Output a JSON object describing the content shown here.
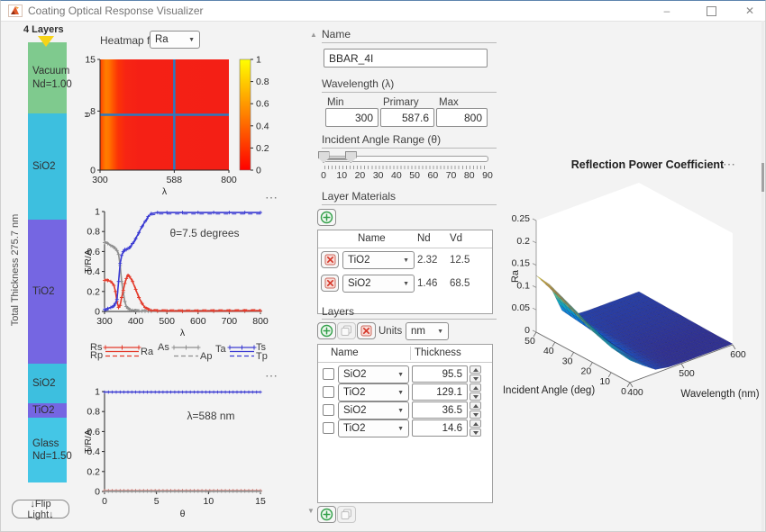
{
  "window": {
    "title": "Coating Optical Response Visualizer",
    "controls": {
      "minimize": "–",
      "close": "✕"
    }
  },
  "colors": {
    "red": "#e33a2a",
    "blue": "#3b3bd2",
    "gray": "#8f8f8f",
    "crosshair": "#2c7abf",
    "heat_low": "#ff0000",
    "heat_high": "#ffff00",
    "axis": "#262626"
  },
  "layer_panel": {
    "count_label": "4 Layers",
    "total_thickness_label": "Total Thickness 275.7 nm",
    "flip_button": "↓Flip Light↓",
    "layers": [
      {
        "lines": [
          "Vacuum",
          "Nd=1.00"
        ],
        "color": "#7fca8e",
        "h": 79
      },
      {
        "lines": [
          "SiO2"
        ],
        "color": "#3dbfdf",
        "h": 118
      },
      {
        "lines": [
          "TiO2"
        ],
        "color": "#7566e2",
        "h": 160
      },
      {
        "lines": [
          "SiO2"
        ],
        "color": "#3dbfdf",
        "h": 44
      },
      {
        "lines": [
          "TiO2"
        ],
        "color": "#7566e2",
        "h": 16
      },
      {
        "lines": [
          "Glass",
          "Nd=1.50"
        ],
        "color": "#44c6e6",
        "h": 72
      }
    ]
  },
  "heatmap": {
    "type": "heatmap",
    "selector_label": "Heatmap for :",
    "selector_value": "Ra",
    "xlabel": "λ",
    "ylabel": "θ",
    "xlim": [
      300,
      800
    ],
    "ylim": [
      0,
      15
    ],
    "xticks": [
      "300",
      "588",
      "800"
    ],
    "yticks": [
      "0",
      "8",
      "15"
    ],
    "crosshair": {
      "lambda": 588,
      "theta": 7.5
    },
    "band": [
      {
        "o": 0.0,
        "c": "#ff3800"
      },
      {
        "o": 0.02,
        "c": "#ff5f00"
      },
      {
        "o": 0.045,
        "c": "#ff7d00"
      },
      {
        "o": 0.07,
        "c": "#ff7400"
      },
      {
        "o": 0.1,
        "c": "#ff5500"
      },
      {
        "o": 0.14,
        "c": "#fb3307"
      },
      {
        "o": 0.2,
        "c": "#f72513"
      },
      {
        "o": 0.3,
        "c": "#f52015"
      },
      {
        "o": 1.0,
        "c": "#f41f15"
      }
    ],
    "colorbar_ticks": [
      "0",
      "0.2",
      "0.4",
      "0.6",
      "0.8",
      "1"
    ],
    "menu": "⋯"
  },
  "spectral_plot": {
    "type": "line",
    "annotation": "θ=7.5 degrees",
    "xlabel": "λ",
    "ylabel": "T/R/A",
    "xlim": [
      300,
      800
    ],
    "ylim": [
      0,
      1
    ],
    "xticks": [
      "300",
      "400",
      "500",
      "600",
      "700",
      "800"
    ],
    "yticks": [
      "0",
      "0.2",
      "0.4",
      "0.6",
      "0.8",
      "1"
    ],
    "x": [
      300,
      310,
      320,
      330,
      335,
      340,
      345,
      350,
      355,
      360,
      365,
      370,
      375,
      380,
      390,
      400,
      410,
      420,
      430,
      440,
      450,
      470,
      500,
      550,
      600,
      650,
      700,
      750,
      800
    ],
    "series": [
      {
        "name": "T",
        "color_key": "blue",
        "y": [
          0.02,
          0.03,
          0.04,
          0.06,
          0.08,
          0.12,
          0.3,
          0.48,
          0.56,
          0.6,
          0.62,
          0.62,
          0.63,
          0.64,
          0.68,
          0.73,
          0.79,
          0.85,
          0.9,
          0.95,
          0.98,
          0.99,
          0.99,
          0.99,
          0.99,
          0.99,
          0.99,
          0.99,
          0.99
        ]
      },
      {
        "name": "R",
        "color_key": "red",
        "y": [
          0.31,
          0.31,
          0.3,
          0.26,
          0.2,
          0.1,
          0.04,
          0.06,
          0.14,
          0.21,
          0.28,
          0.33,
          0.36,
          0.35,
          0.3,
          0.22,
          0.14,
          0.08,
          0.04,
          0.02,
          0.01,
          0.006,
          0.005,
          0.004,
          0.004,
          0.005,
          0.005,
          0.006,
          0.007
        ]
      },
      {
        "name": "A",
        "color_key": "gray",
        "y": [
          0.69,
          0.68,
          0.66,
          0.64,
          0.63,
          0.61,
          0.57,
          0.46,
          0.3,
          0.19,
          0.1,
          0.05,
          0.03,
          0.02,
          0.012,
          0.008,
          0.005,
          0.004,
          0.003,
          0.002,
          0.002,
          0.001,
          0.001,
          0.001,
          0.001,
          0.001,
          0.001,
          0.001,
          0.001
        ]
      }
    ],
    "legend": [
      "Rs",
      "Rp",
      "Ra",
      "As",
      "Ap",
      "Ta",
      "Ts",
      "Tp"
    ],
    "menu": "⋯"
  },
  "angular_plot": {
    "type": "line",
    "annotation": "λ=588 nm",
    "xlabel": "θ",
    "ylabel": "T/R/A",
    "xlim": [
      0,
      15
    ],
    "ylim": [
      0,
      1
    ],
    "xticks": [
      "0",
      "5",
      "10",
      "15"
    ],
    "yticks": [
      "0",
      "0.2",
      "0.4",
      "0.6",
      "0.8",
      "1"
    ],
    "series": [
      {
        "name": "T",
        "color_key": "blue",
        "value": 0.995
      },
      {
        "name": "R",
        "color_key": "red",
        "value": 0.007
      },
      {
        "name": "A",
        "color_key": "gray",
        "value": 0.003
      }
    ],
    "menu": "⋯"
  },
  "surface_plot": {
    "type": "surface",
    "title": "Reflection Power Coefficient",
    "xlabel": "Wavelength (nm)",
    "ylabel": "Incident Angle (deg)",
    "zlabel": "Ra",
    "zlim": [
      0,
      0.25
    ],
    "zticks": [
      "0",
      "0.05",
      "0.1",
      "0.15",
      "0.2",
      "0.25"
    ],
    "angle_ticks": [
      "0",
      "10",
      "20",
      "30",
      "40",
      "50"
    ],
    "wavelength_ticks": [
      "400",
      "500",
      "600"
    ],
    "angles": [
      0,
      10,
      20,
      30,
      40,
      50
    ],
    "wavelengths": [
      400,
      425,
      450,
      475,
      500,
      525,
      550,
      575,
      600
    ],
    "values": [
      [
        0.05,
        0.028,
        0.008,
        0.003,
        0.002,
        0.002,
        0.002,
        0.002,
        0.002
      ],
      [
        0.056,
        0.032,
        0.009,
        0.003,
        0.002,
        0.002,
        0.002,
        0.002,
        0.002
      ],
      [
        0.07,
        0.042,
        0.012,
        0.004,
        0.003,
        0.003,
        0.003,
        0.003,
        0.003
      ],
      [
        0.09,
        0.058,
        0.016,
        0.005,
        0.004,
        0.004,
        0.004,
        0.004,
        0.004
      ],
      [
        0.11,
        0.078,
        0.022,
        0.006,
        0.005,
        0.005,
        0.005,
        0.005,
        0.005
      ],
      [
        0.127,
        0.097,
        0.028,
        0.008,
        0.006,
        0.006,
        0.006,
        0.006,
        0.006
      ]
    ],
    "parula": [
      "#352a87",
      "#0f62dd",
      "#1481d6",
      "#06a4ca",
      "#2eb7a4",
      "#87bf77",
      "#d1bb59",
      "#fec832",
      "#f9fb0e"
    ],
    "menu": "⋯"
  },
  "controls": {
    "name_section": {
      "header": "Name",
      "value": "BBAR_4I"
    },
    "wavelength": {
      "header": "Wavelength (λ)",
      "min_label": "Min",
      "primary_label": "Primary",
      "max_label": "Max",
      "min": "300",
      "primary": "587.6",
      "max": "800"
    },
    "angle": {
      "header": "Incident Angle Range (θ)",
      "min": 0,
      "max": 90,
      "low": 0,
      "high": 15,
      "tick_labels": [
        "0",
        "10",
        "20",
        "30",
        "40",
        "50",
        "60",
        "70",
        "80",
        "90"
      ]
    },
    "materials": {
      "header": "Layer Materials",
      "columns": [
        "Name",
        "Nd",
        "Vd"
      ],
      "rows": [
        {
          "name": "TiO2",
          "nd": "2.32",
          "vd": "12.5"
        },
        {
          "name": "SiO2",
          "nd": "1.46",
          "vd": "68.5"
        }
      ]
    },
    "layers_section": {
      "header": "Layers",
      "units_label": "Units",
      "units_value": "nm",
      "columns": [
        "Name",
        "Thickness"
      ],
      "rows": [
        {
          "name": "SiO2",
          "thickness": "95.5"
        },
        {
          "name": "TiO2",
          "thickness": "129.1"
        },
        {
          "name": "SiO2",
          "thickness": "36.5"
        },
        {
          "name": "TiO2",
          "thickness": "14.6"
        }
      ]
    }
  }
}
